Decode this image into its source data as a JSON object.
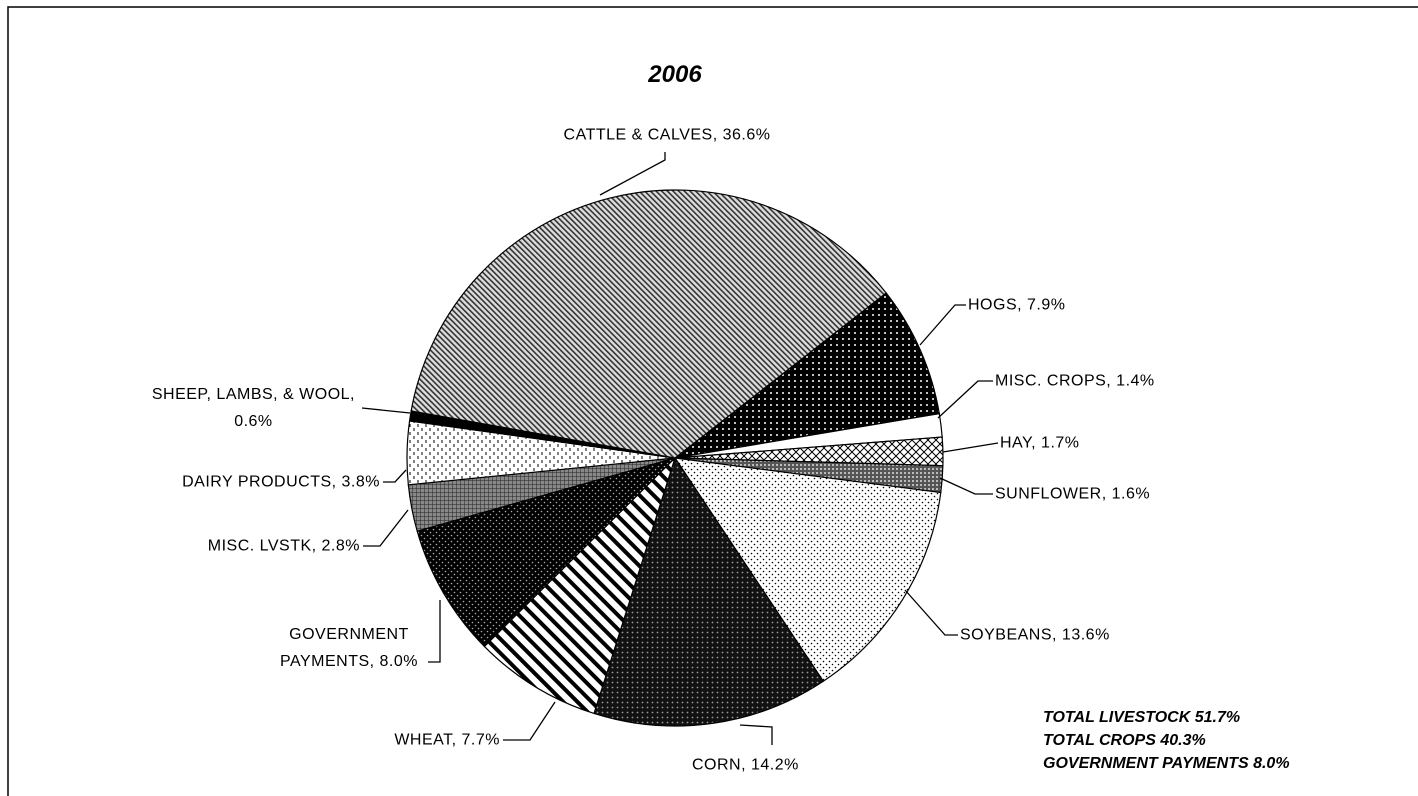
{
  "chart_data": {
    "type": "pie",
    "title": "2006",
    "values": [
      7.9,
      1.4,
      1.7,
      1.6,
      13.6,
      14.2,
      7.7,
      8.0,
      2.8,
      3.8,
      0.6,
      36.6
    ],
    "value_labels": [
      "HOGS, 7.9%",
      "MISC. CROPS, 1.4%",
      "HAY, 1.7%",
      "SUNFLOWER, 1.6%",
      "SOYBEANS, 13.6%",
      "CORN, 14.2%",
      "WHEAT, 7.7%",
      "GOVERNMENT\nPAYMENTS, 8.0%",
      "MISC. LVSTK, 2.8%",
      "DAIRY PRODUCTS, 3.8%",
      "SHEEP, LAMBS, & WOOL,\n0.6%",
      "CATTLE & CALVES, 36.6%"
    ],
    "annotations": [
      "TOTAL LIVESTOCK 51.7%",
      "TOTAL CROPS 40.3%",
      "GOVERNMENT PAYMENTS 8.0%"
    ]
  }
}
